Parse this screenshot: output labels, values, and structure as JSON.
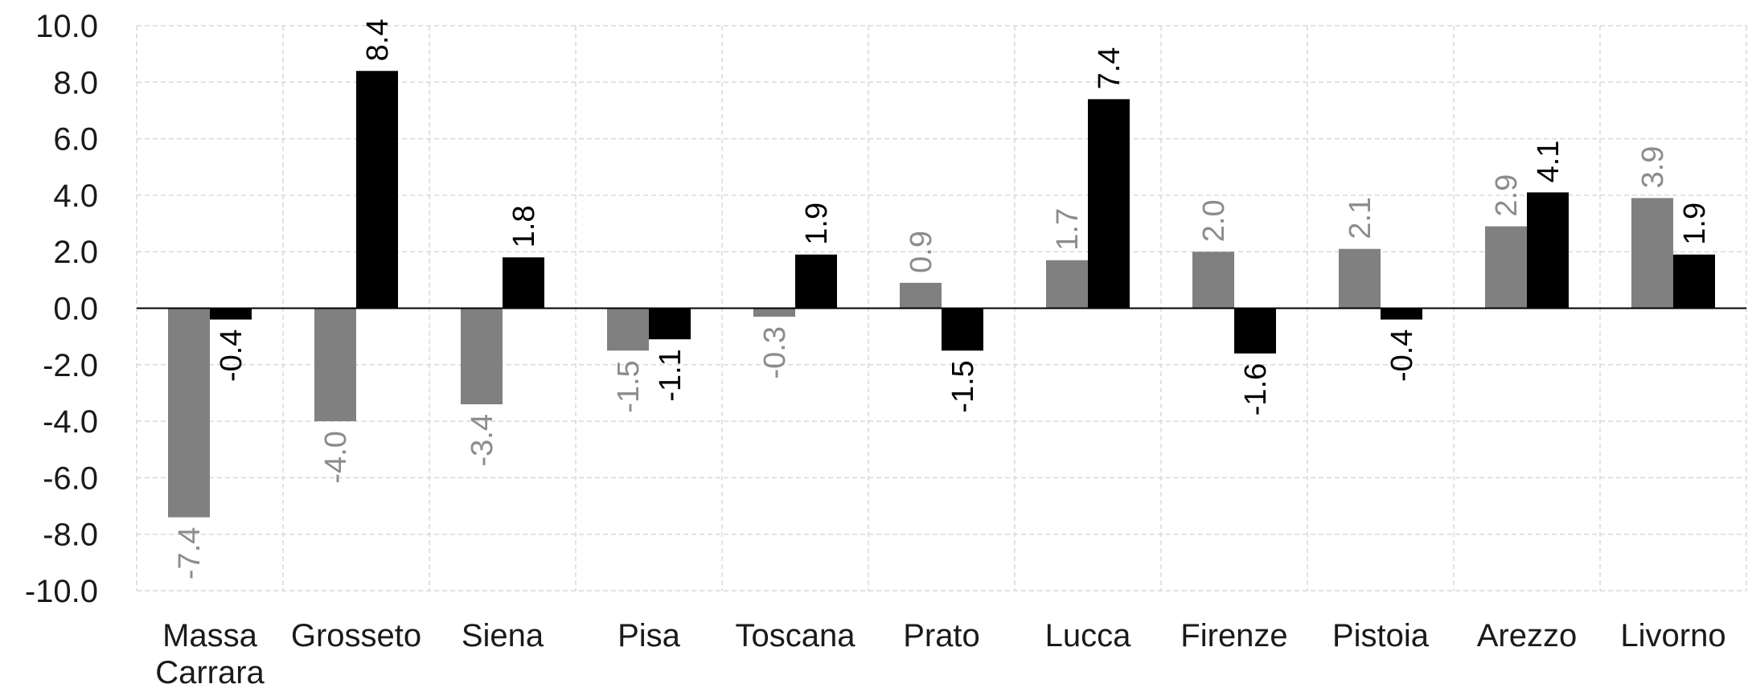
{
  "chart_data": {
    "type": "bar",
    "title": "",
    "xlabel": "",
    "ylabel": "",
    "ylim": [
      -10,
      10
    ],
    "yticks": [
      "10.0",
      "8.0",
      "6.0",
      "4.0",
      "2.0",
      "0.0",
      "-2.0",
      "-4.0",
      "-6.0",
      "-8.0",
      "-10.0"
    ],
    "grid": true,
    "legend": "none",
    "categories": [
      [
        "Massa",
        "Carrara"
      ],
      [
        "Grosseto"
      ],
      [
        "Siena"
      ],
      [
        "Pisa"
      ],
      [
        "Toscana"
      ],
      [
        "Prato"
      ],
      [
        "Lucca"
      ],
      [
        "Firenze"
      ],
      [
        "Pistoia"
      ],
      [
        "Arezzo"
      ],
      [
        "Livorno"
      ]
    ],
    "series": [
      {
        "color": "#808080",
        "values": [
          -7.4,
          -4.0,
          -3.4,
          -1.5,
          -0.3,
          0.9,
          1.7,
          2.0,
          2.1,
          2.9,
          3.9
        ],
        "labels": [
          "-7.4",
          "-4.0",
          "-3.4",
          "-1.5",
          "-0.3",
          "0.9",
          "1.7",
          "2.0",
          "2.1",
          "2.9",
          "3.9"
        ]
      },
      {
        "color": "#000000",
        "values": [
          -0.4,
          8.4,
          1.8,
          -1.1,
          1.9,
          -1.5,
          7.4,
          -1.6,
          -0.4,
          4.1,
          1.9
        ],
        "labels": [
          "-0.4",
          "8.4",
          "1.8",
          "-1.1",
          "1.9",
          "-1.5",
          "7.4",
          "-1.6",
          "-0.4",
          "4.1",
          "1.9"
        ]
      }
    ]
  }
}
